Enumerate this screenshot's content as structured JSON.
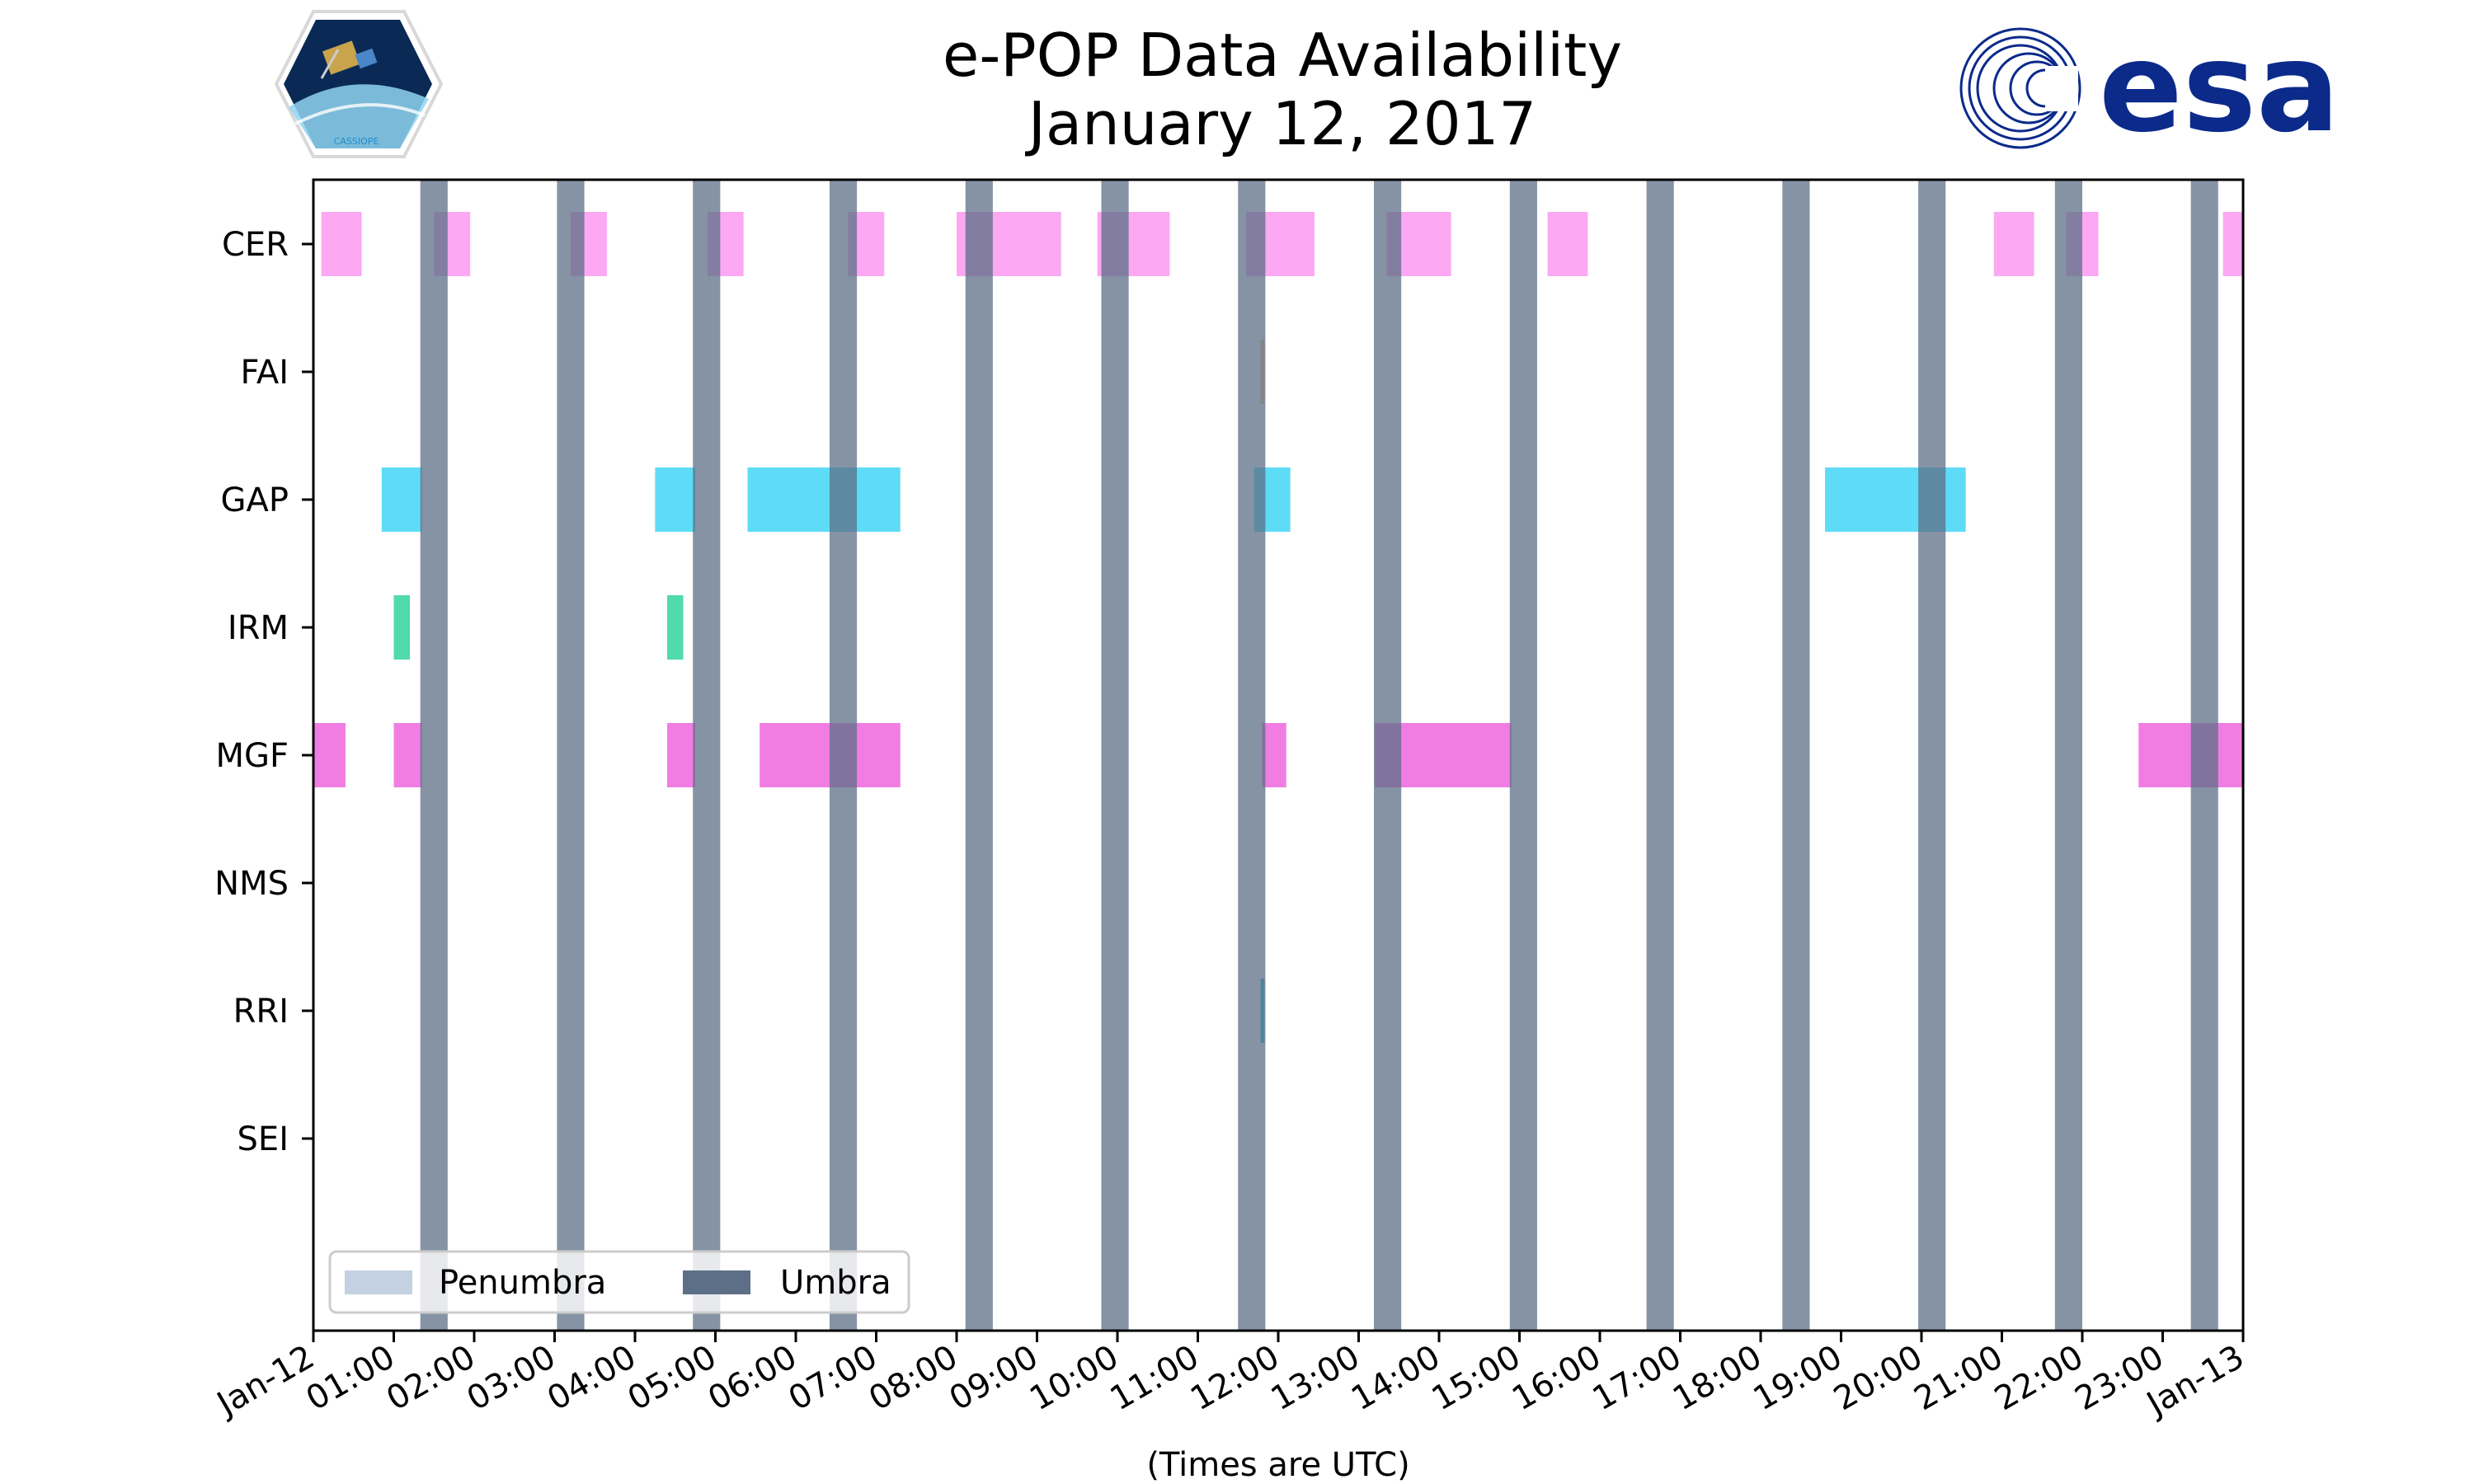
{
  "chart_data": {
    "type": "timeline",
    "title": [
      "e-POP Data Availability",
      "January 12, 2017"
    ],
    "xlabel": "(Times are UTC)",
    "ylabel": "",
    "x_unit": "hours UTC",
    "xlim": [
      0,
      24
    ],
    "x_ticks": [
      {
        "value": 0,
        "label": "Jan-12"
      },
      {
        "value": 1,
        "label": "01:00"
      },
      {
        "value": 2,
        "label": "02:00"
      },
      {
        "value": 3,
        "label": "03:00"
      },
      {
        "value": 4,
        "label": "04:00"
      },
      {
        "value": 5,
        "label": "05:00"
      },
      {
        "value": 6,
        "label": "06:00"
      },
      {
        "value": 7,
        "label": "07:00"
      },
      {
        "value": 8,
        "label": "08:00"
      },
      {
        "value": 9,
        "label": "09:00"
      },
      {
        "value": 10,
        "label": "10:00"
      },
      {
        "value": 11,
        "label": "11:00"
      },
      {
        "value": 12,
        "label": "12:00"
      },
      {
        "value": 13,
        "label": "13:00"
      },
      {
        "value": 14,
        "label": "14:00"
      },
      {
        "value": 15,
        "label": "15:00"
      },
      {
        "value": 16,
        "label": "16:00"
      },
      {
        "value": 17,
        "label": "17:00"
      },
      {
        "value": 18,
        "label": "18:00"
      },
      {
        "value": 19,
        "label": "19:00"
      },
      {
        "value": 20,
        "label": "20:00"
      },
      {
        "value": 21,
        "label": "21:00"
      },
      {
        "value": 22,
        "label": "22:00"
      },
      {
        "value": 23,
        "label": "23:00"
      },
      {
        "value": 24,
        "label": "Jan-13"
      }
    ],
    "instruments": [
      "CER",
      "FAI",
      "GAP",
      "IRM",
      "MGF",
      "NMS",
      "RRI",
      "SEI"
    ],
    "series": [
      {
        "name": "CER",
        "color": "#fc9ff2",
        "intervals": [
          [
            0.1,
            0.6
          ],
          [
            1.5,
            1.95
          ],
          [
            3.2,
            3.65
          ],
          [
            4.9,
            5.35
          ],
          [
            6.65,
            7.1
          ],
          [
            8.0,
            9.3
          ],
          [
            9.75,
            10.65
          ],
          [
            11.6,
            12.45
          ],
          [
            13.35,
            14.15
          ],
          [
            15.35,
            15.85
          ],
          [
            20.9,
            21.4
          ],
          [
            21.8,
            22.2
          ],
          [
            23.75,
            24.0
          ]
        ]
      },
      {
        "name": "FAI",
        "color": "#f5c07a",
        "intervals": [
          [
            11.78,
            11.83
          ]
        ]
      },
      {
        "name": "GAP",
        "color": "#4dd8f6",
        "intervals": [
          [
            0.85,
            1.35
          ],
          [
            4.25,
            4.75
          ],
          [
            5.4,
            7.3
          ],
          [
            11.7,
            12.15
          ],
          [
            18.8,
            20.55
          ]
        ]
      },
      {
        "name": "IRM",
        "color": "#3dd6a4",
        "intervals": [
          [
            1.0,
            1.2
          ],
          [
            4.4,
            4.6
          ]
        ]
      },
      {
        "name": "MGF",
        "color": "#ef6fe0",
        "intervals": [
          [
            0.0,
            0.4
          ],
          [
            1.0,
            1.35
          ],
          [
            4.4,
            4.75
          ],
          [
            5.55,
            7.3
          ],
          [
            11.8,
            12.1
          ],
          [
            13.2,
            14.9
          ],
          [
            22.7,
            24.0
          ]
        ]
      },
      {
        "name": "NMS",
        "color": "#888888",
        "intervals": []
      },
      {
        "name": "RRI",
        "color": "#1fb5d6",
        "intervals": [
          [
            11.78,
            11.83
          ]
        ]
      },
      {
        "name": "SEI",
        "color": "#888888",
        "intervals": []
      }
    ],
    "umbra_color": "#5c6f87",
    "penumbra_color": "#c3d1e3",
    "umbra_intervals": [
      [
        1.33,
        1.67
      ],
      [
        3.03,
        3.37
      ],
      [
        4.72,
        5.06
      ],
      [
        6.42,
        6.76
      ],
      [
        8.11,
        8.45
      ],
      [
        9.8,
        10.14
      ],
      [
        11.5,
        11.84
      ],
      [
        13.19,
        13.53
      ],
      [
        14.88,
        15.22
      ],
      [
        16.58,
        16.92
      ],
      [
        18.27,
        18.61
      ],
      [
        19.96,
        20.3
      ],
      [
        21.66,
        22.0
      ],
      [
        23.35,
        23.69
      ]
    ],
    "penumbra_intervals": [],
    "legend": {
      "position": "lower-left",
      "entries": [
        {
          "label": "Penumbra",
          "kind": "penumbra"
        },
        {
          "label": "Umbra",
          "kind": "umbra"
        }
      ]
    }
  },
  "logos": {
    "left": {
      "name": "CASSIOPE mission badge",
      "text": "CASSIOPE",
      "colors": {
        "sky": "#0a2a55",
        "earth": "#8fd3f0"
      }
    },
    "right": {
      "name": "esa logo",
      "text": "esa",
      "color": "#0b2a8a"
    }
  }
}
